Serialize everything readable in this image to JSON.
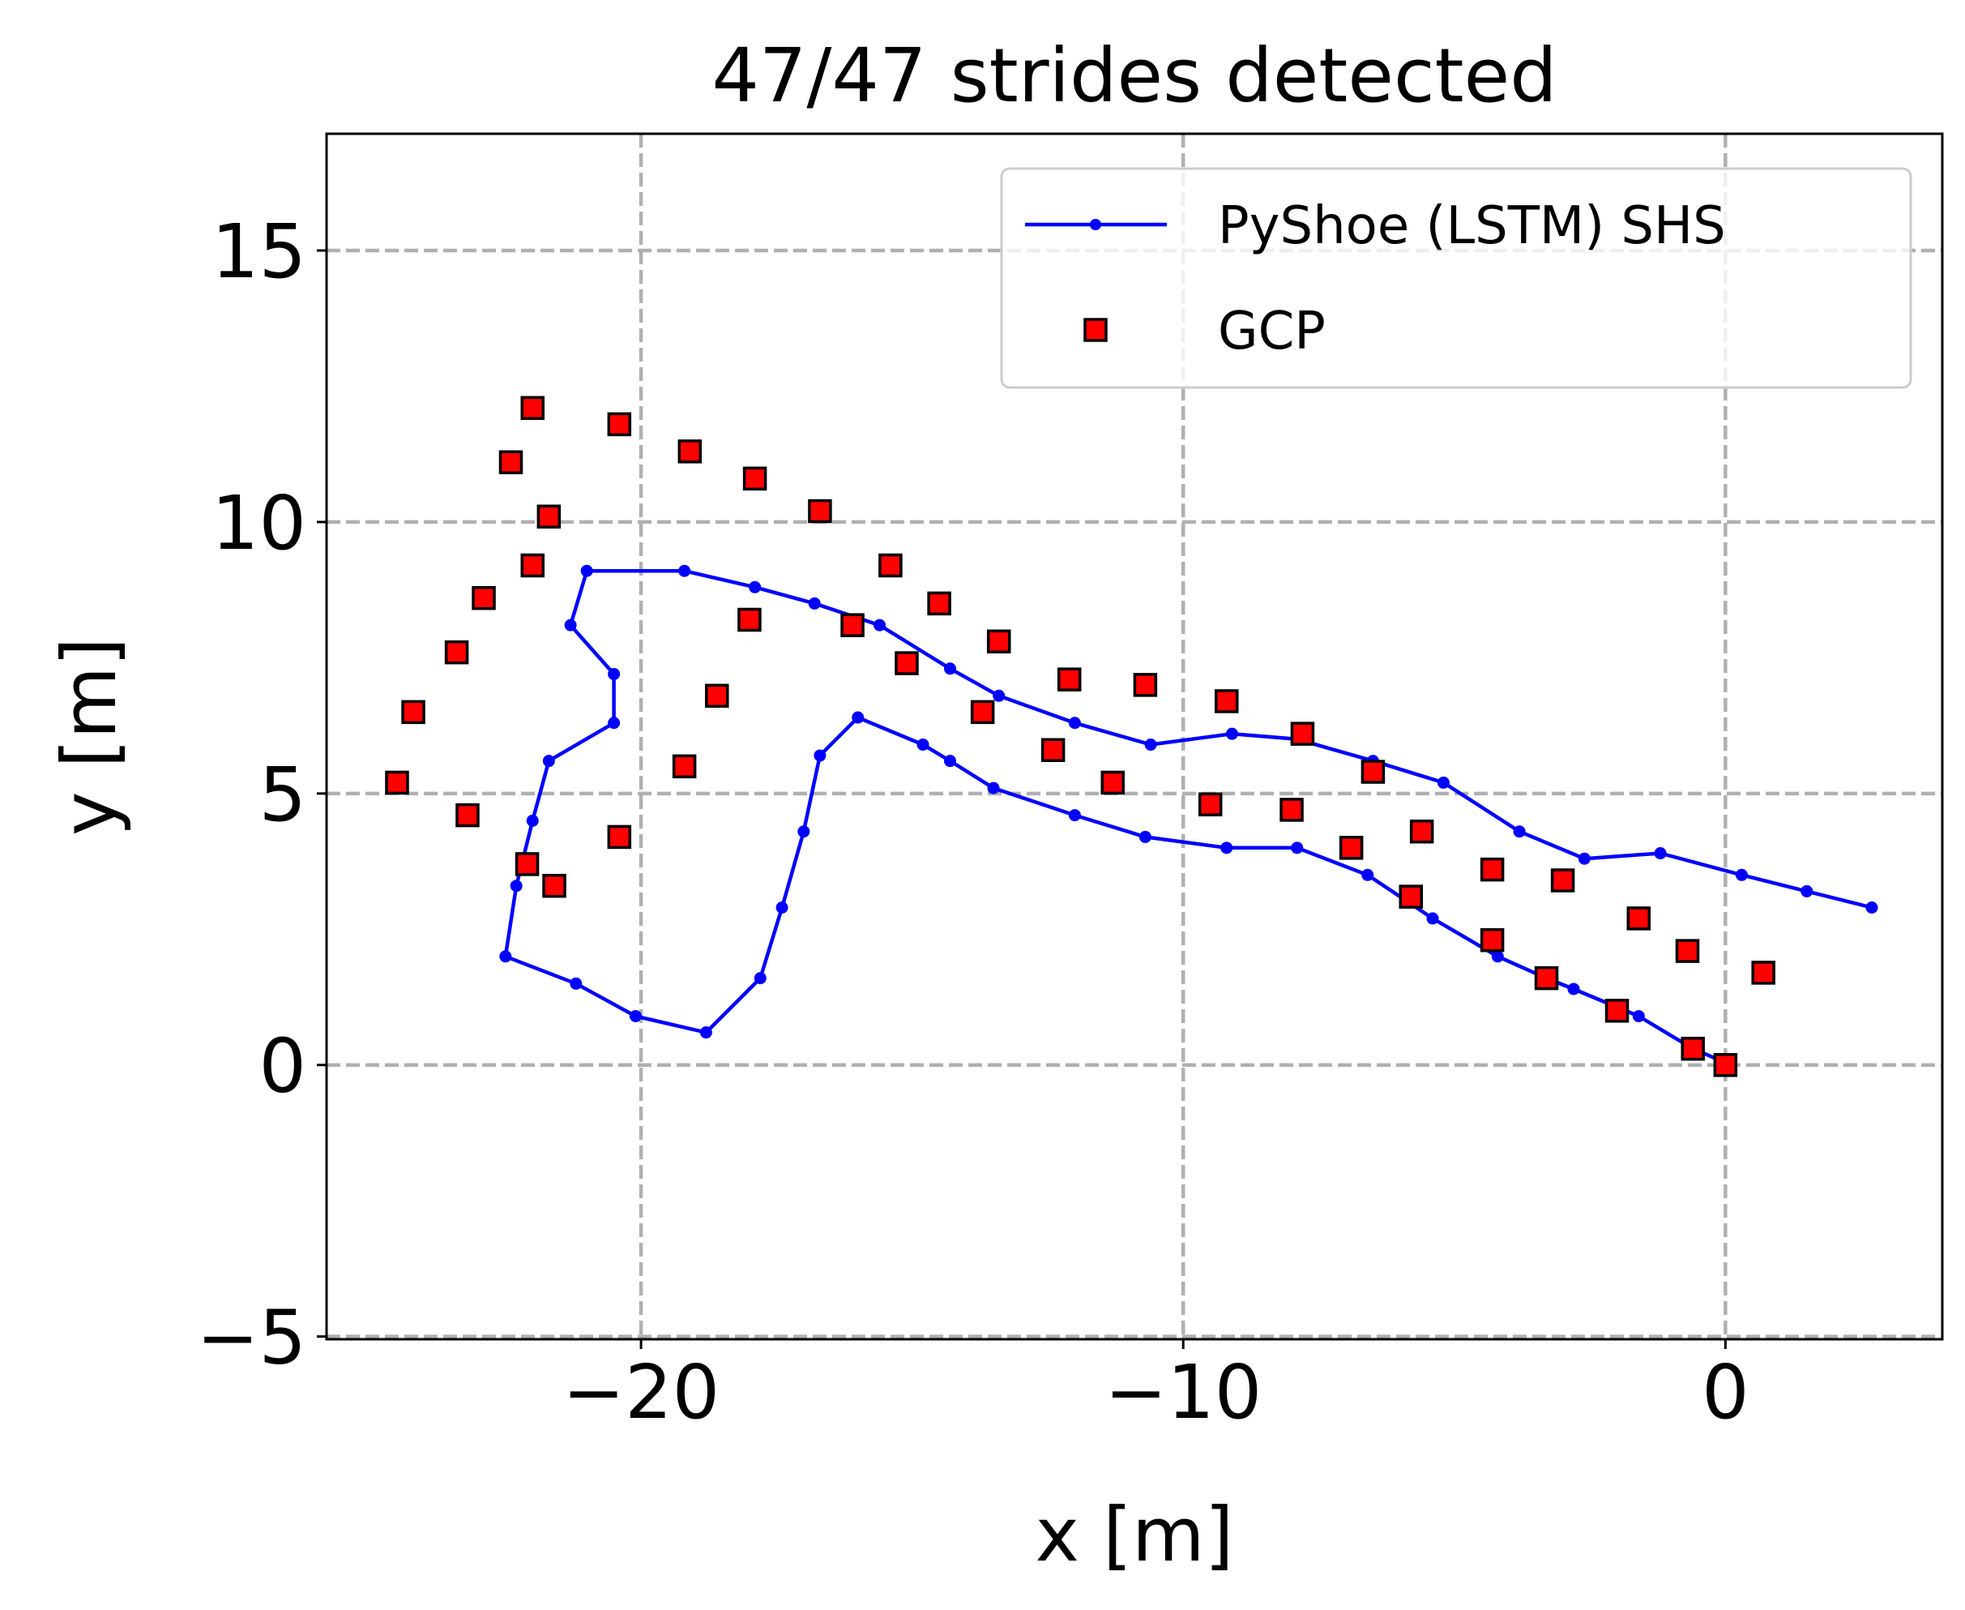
{
  "chart_data": {
    "type": "scatter",
    "title": "47/47 strides detected",
    "xlabel": "x [m]",
    "ylabel": "y [m]",
    "xlim": [
      -25.8,
      4.0
    ],
    "ylim": [
      -5.05,
      17.15
    ],
    "xticks": [
      -20,
      -10,
      0
    ],
    "xtick_labels": [
      "−20",
      "−10",
      "0"
    ],
    "yticks": [
      -5,
      0,
      5,
      10,
      15
    ],
    "ytick_labels": [
      "−5",
      "0",
      "5",
      "10",
      "15"
    ],
    "grid": true,
    "legend_position": "top-right",
    "series": [
      {
        "name": "PyShoe (LSTM) SHS",
        "kind": "line",
        "color": "#0000ff",
        "points": [
          [
            0.1,
            0.0
          ],
          [
            -0.6,
            0.3
          ],
          [
            -1.6,
            0.9
          ],
          [
            -2.8,
            1.4
          ],
          [
            -3.3,
            1.6
          ],
          [
            -4.2,
            2.0
          ],
          [
            -5.4,
            2.7
          ],
          [
            -6.6,
            3.5
          ],
          [
            -7.9,
            4.0
          ],
          [
            -9.2,
            4.0
          ],
          [
            -10.7,
            4.2
          ],
          [
            -12.0,
            4.6
          ],
          [
            -13.5,
            5.1
          ],
          [
            -14.3,
            5.6
          ],
          [
            -14.8,
            5.9
          ],
          [
            -16.0,
            6.4
          ],
          [
            -16.7,
            5.7
          ],
          [
            -17.0,
            4.3
          ],
          [
            -17.4,
            2.9
          ],
          [
            -17.8,
            1.6
          ],
          [
            -18.8,
            0.6
          ],
          [
            -20.1,
            0.9
          ],
          [
            -21.2,
            1.5
          ],
          [
            -22.5,
            2.0
          ],
          [
            -22.3,
            3.3
          ],
          [
            -22.0,
            4.5
          ],
          [
            -21.7,
            5.6
          ],
          [
            -20.5,
            6.3
          ],
          [
            -20.5,
            7.2
          ],
          [
            -21.3,
            8.1
          ],
          [
            -21.0,
            9.1
          ],
          [
            -19.2,
            9.1
          ],
          [
            -17.9,
            8.8
          ],
          [
            -16.8,
            8.5
          ],
          [
            -15.6,
            8.1
          ],
          [
            -14.3,
            7.3
          ],
          [
            -13.4,
            6.8
          ],
          [
            -12.0,
            6.3
          ],
          [
            -10.6,
            5.9
          ],
          [
            -9.1,
            6.1
          ],
          [
            -7.9,
            6.0
          ],
          [
            -6.5,
            5.6
          ],
          [
            -5.2,
            5.2
          ],
          [
            -3.8,
            4.3
          ],
          [
            -2.6,
            3.8
          ],
          [
            -1.2,
            3.9
          ],
          [
            0.3,
            3.5
          ],
          [
            1.5,
            3.2
          ],
          [
            2.7,
            2.9
          ]
        ]
      },
      {
        "name": "GCP",
        "kind": "marker",
        "color": "#ff0000",
        "edge_color": "#000000",
        "points": [
          [
            0.0,
            0.0
          ],
          [
            -0.6,
            0.3
          ],
          [
            -2.0,
            1.0
          ],
          [
            -3.3,
            1.6
          ],
          [
            -4.3,
            2.3
          ],
          [
            -5.8,
            3.1
          ],
          [
            -6.9,
            4.0
          ],
          [
            -8.0,
            4.7
          ],
          [
            -9.5,
            4.8
          ],
          [
            -11.3,
            5.2
          ],
          [
            -12.4,
            5.8
          ],
          [
            -13.7,
            6.5
          ],
          [
            -15.1,
            7.4
          ],
          [
            -16.1,
            8.1
          ],
          [
            -18.0,
            8.2
          ],
          [
            -19.2,
            5.5
          ],
          [
            -20.4,
            4.2
          ],
          [
            -21.6,
            3.3
          ],
          [
            -22.1,
            3.7
          ],
          [
            -23.2,
            4.6
          ],
          [
            -24.5,
            5.2
          ],
          [
            -24.2,
            6.5
          ],
          [
            -23.4,
            7.6
          ],
          [
            -22.9,
            8.6
          ],
          [
            -22.0,
            9.2
          ],
          [
            -21.7,
            10.1
          ],
          [
            -22.4,
            11.1
          ],
          [
            -22.0,
            12.1
          ],
          [
            -20.4,
            11.8
          ],
          [
            -19.1,
            11.3
          ],
          [
            -17.9,
            10.8
          ],
          [
            -16.7,
            10.2
          ],
          [
            -15.4,
            9.2
          ],
          [
            -14.5,
            8.5
          ],
          [
            -13.4,
            7.8
          ],
          [
            -12.1,
            7.1
          ],
          [
            -10.7,
            7.0
          ],
          [
            -9.2,
            6.7
          ],
          [
            -7.8,
            6.1
          ],
          [
            -6.5,
            5.4
          ],
          [
            -5.6,
            4.3
          ],
          [
            -4.3,
            3.6
          ],
          [
            -3.0,
            3.4
          ],
          [
            -1.6,
            2.7
          ],
          [
            -0.7,
            2.1
          ],
          [
            0.7,
            1.7
          ],
          [
            -18.6,
            6.8
          ]
        ]
      }
    ]
  }
}
